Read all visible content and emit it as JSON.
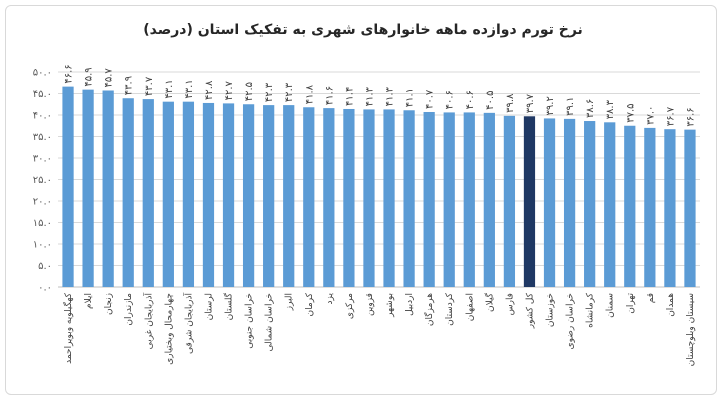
{
  "chart_data": {
    "type": "bar",
    "title": "نرخ تورم دوازده ماهه خانوارهای شهری به تفکیک استان (درصد)",
    "xlabel": "",
    "ylabel": "",
    "ylim": [
      0,
      50
    ],
    "y_ticks": [
      0,
      5,
      10,
      15,
      20,
      25,
      30,
      35,
      40,
      45,
      50
    ],
    "y_tick_labels": [
      "۰.۰",
      "۵.۰",
      "۱۰.۰",
      "۱۵.۰",
      "۲۰.۰",
      "۲۵.۰",
      "۳۰.۰",
      "۳۵.۰",
      "۴۰.۰",
      "۴۵.۰",
      "۵۰.۰"
    ],
    "grid": true,
    "legend": "none",
    "colors": {
      "bar": "#5b9bd5",
      "highlight": "#1f3864"
    },
    "highlight_category": "کل کشور",
    "categories": [
      "کهگیلویه وبویراحمد",
      "ایلام",
      "زنجان",
      "مازندران",
      "آذربایجان غربی",
      "چهارمحال وبختیاری",
      "آذربایجان شرقی",
      "لرستان",
      "گلستان",
      "خراسان جنوبی",
      "خراسان شمالی",
      "البرز",
      "کرمان",
      "یزد",
      "مرکزی",
      "قزوین",
      "بوشهر",
      "اردبیل",
      "هرمزگان",
      "کردستان",
      "اصفهان",
      "گیلان",
      "فارس",
      "کل کشور",
      "خوزستان",
      "خراسان رضوی",
      "کرمانشاه",
      "سمنان",
      "تهران",
      "قم",
      "همدان",
      "سیستان وبلوچستان"
    ],
    "values": [
      46.6,
      45.9,
      45.7,
      43.9,
      43.7,
      43.1,
      43.1,
      42.8,
      42.7,
      42.5,
      42.3,
      42.3,
      41.8,
      41.6,
      41.4,
      41.3,
      41.3,
      41.1,
      40.7,
      40.6,
      40.6,
      40.5,
      39.8,
      39.7,
      39.2,
      39.1,
      38.6,
      38.3,
      37.5,
      37.0,
      36.7,
      36.6
    ],
    "data_labels": [
      "۴۶.۶",
      "۴۵.۹",
      "۴۵.۷",
      "۴۳.۹",
      "۴۳.۷",
      "۴۳.۱",
      "۴۳.۱",
      "۴۲.۸",
      "۴۲.۷",
      "۴۲.۵",
      "۴۲.۳",
      "۴۲.۳",
      "۴۱.۸",
      "۴۱.۶",
      "۴۱.۴",
      "۴۱.۳",
      "۴۱.۳",
      "۴۱.۱",
      "۴۰.۷",
      "۴۰.۶",
      "۴۰.۶",
      "۴۰.۵",
      "۳۹.۸",
      "۳۹.۷",
      "۳۹.۲",
      "۳۹.۱",
      "۳۸.۶",
      "۳۸.۳",
      "۳۷.۵",
      "۳۷.۰",
      "۳۶.۷",
      "۳۶.۶"
    ]
  }
}
